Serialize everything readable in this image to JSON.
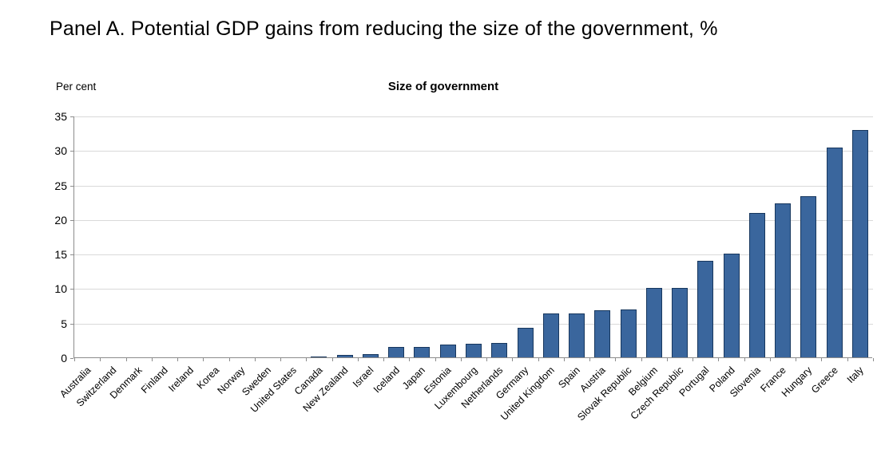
{
  "page": {
    "title": "Panel A. Potential GDP gains from reducing the size of the government, %"
  },
  "chart_data": {
    "type": "bar",
    "title": "Size of government",
    "y_axis_label": "Per cent",
    "xlabel": "",
    "ylabel": "Per cent",
    "ylim": [
      0,
      35
    ],
    "ytick_step": 5,
    "grid": true,
    "legend": "none",
    "categories": [
      "Australia",
      "Switzerland",
      "Denmark",
      "Finland",
      "Ireland",
      "Korea",
      "Norway",
      "Sweden",
      "United States",
      "Canada",
      "New Zealand",
      "Israel",
      "Iceland",
      "Japan",
      "Estonia",
      "Luxembourg",
      "Netherlands",
      "Germany",
      "United Kingdom",
      "Spain",
      "Austria",
      "Slovak Republic",
      "Belgium",
      "Czech Republic",
      "Portugal",
      "Poland",
      "Slovenia",
      "France",
      "Hungary",
      "Greece",
      "Italy"
    ],
    "values": [
      0,
      0,
      0,
      0,
      0,
      0,
      0,
      0,
      0,
      0.1,
      0.3,
      0.5,
      1.5,
      1.5,
      1.8,
      2.0,
      2.1,
      4.3,
      6.3,
      6.4,
      6.8,
      6.9,
      10.0,
      10.1,
      14.0,
      15.0,
      20.9,
      22.3,
      23.3,
      30.4,
      32.9
    ],
    "colors": {
      "bar_fill": "#3A669D",
      "bar_border": "#17375E",
      "gridline": "#D9D9D9",
      "axis": "#8C8C8C",
      "text": "#000000"
    }
  }
}
